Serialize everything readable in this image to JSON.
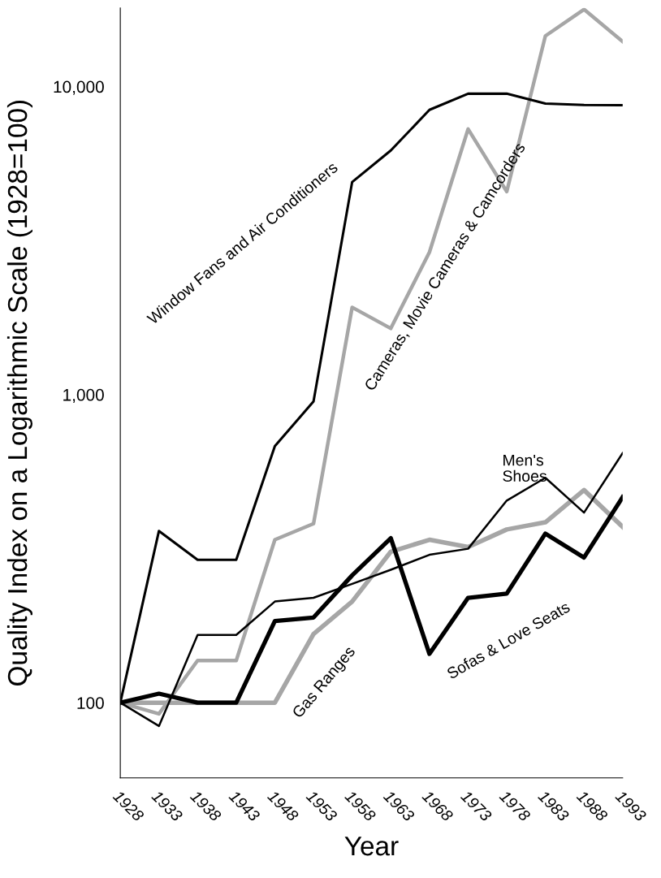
{
  "chart_data": {
    "type": "line",
    "xlabel": "Year",
    "ylabel": "Quality Index on a Logarithmic Scale (1928=100)",
    "categories": [
      "1928",
      "1933",
      "1938",
      "1943",
      "1948",
      "1953",
      "1958",
      "1963",
      "1968",
      "1973",
      "1978",
      "1983",
      "1988",
      "1993"
    ],
    "log": "y",
    "ylim": [
      57,
      18000
    ],
    "yticks": [
      {
        "value": 100,
        "label": "100"
      },
      {
        "value": 1000,
        "label": "1,000"
      },
      {
        "value": 10000,
        "label": "10,000"
      }
    ],
    "grid": false,
    "legend": false,
    "marker": "none",
    "line_style": "solid",
    "series": [
      {
        "name": "Window Fans and Air Conditioners",
        "color": "#000000",
        "values": [
          100,
          361,
          291,
          291,
          681,
          950,
          4900,
          6200,
          8400,
          9480,
          9480,
          8810,
          8710,
          8700
        ]
      },
      {
        "name": "Cameras, Movie Cameras & Camcorders",
        "color": "#a6a6a6",
        "values": [
          100,
          92,
          137,
          137,
          338,
          381,
          1920,
          1640,
          2900,
          7280,
          4560,
          14600,
          17800,
          14000
        ]
      },
      {
        "name": "Men's\nShoes",
        "color": "#000000",
        "values": [
          100,
          84,
          166,
          166,
          213,
          219,
          243,
          270,
          302,
          316,
          453,
          537,
          414,
          646
        ]
      },
      {
        "name": "Gas Ranges",
        "color": "#a6a6a6",
        "values": [
          100,
          100,
          100,
          100,
          100,
          167,
          213,
          309,
          338,
          320,
          365,
          385,
          490,
          372
        ]
      },
      {
        "name": "Sofas & Love Seats",
        "color": "#000000",
        "values": [
          100,
          107,
          100,
          100,
          184,
          189,
          259,
          342,
          144,
          219,
          226,
          354,
          296,
          465
        ]
      }
    ]
  }
}
